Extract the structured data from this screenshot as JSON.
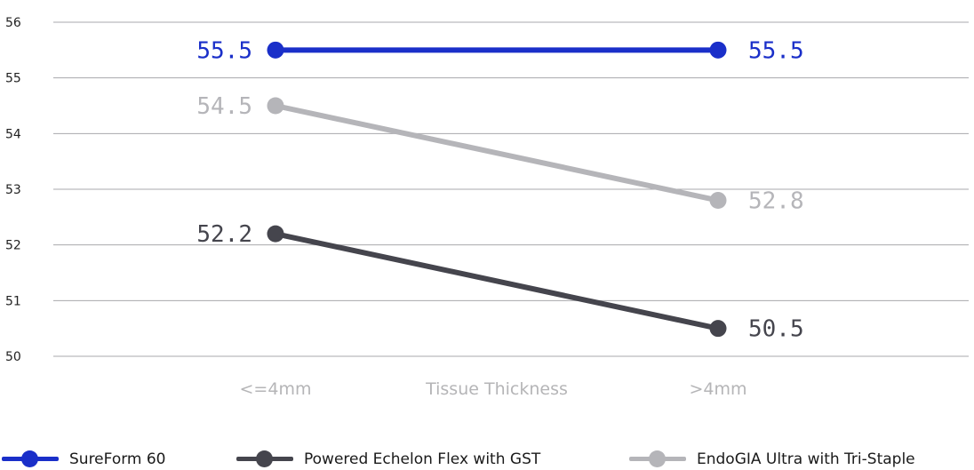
{
  "chart_data": {
    "type": "line",
    "categories": [
      "<=4mm",
      ">4mm"
    ],
    "xlabel": "Tissue Thickness",
    "ylabel": "",
    "title": "",
    "ylim": [
      50,
      56
    ],
    "yticks": [
      50,
      51,
      52,
      53,
      54,
      55,
      56
    ],
    "grid": true,
    "legend_position": "bottom",
    "series": [
      {
        "name": "SureForm 60",
        "values": [
          55.5,
          55.5
        ],
        "labels": [
          "55.5",
          "55.5"
        ],
        "color": "#1a2fc9"
      },
      {
        "name": "Powered Echelon Flex with GST",
        "values": [
          52.2,
          50.5
        ],
        "labels": [
          "52.2",
          "50.5"
        ],
        "color": "#45454d"
      },
      {
        "name": "EndoGIA Ultra with Tri-Staple",
        "values": [
          54.5,
          52.8
        ],
        "labels": [
          "54.5",
          "52.8"
        ],
        "color": "#b5b5b9"
      }
    ]
  }
}
